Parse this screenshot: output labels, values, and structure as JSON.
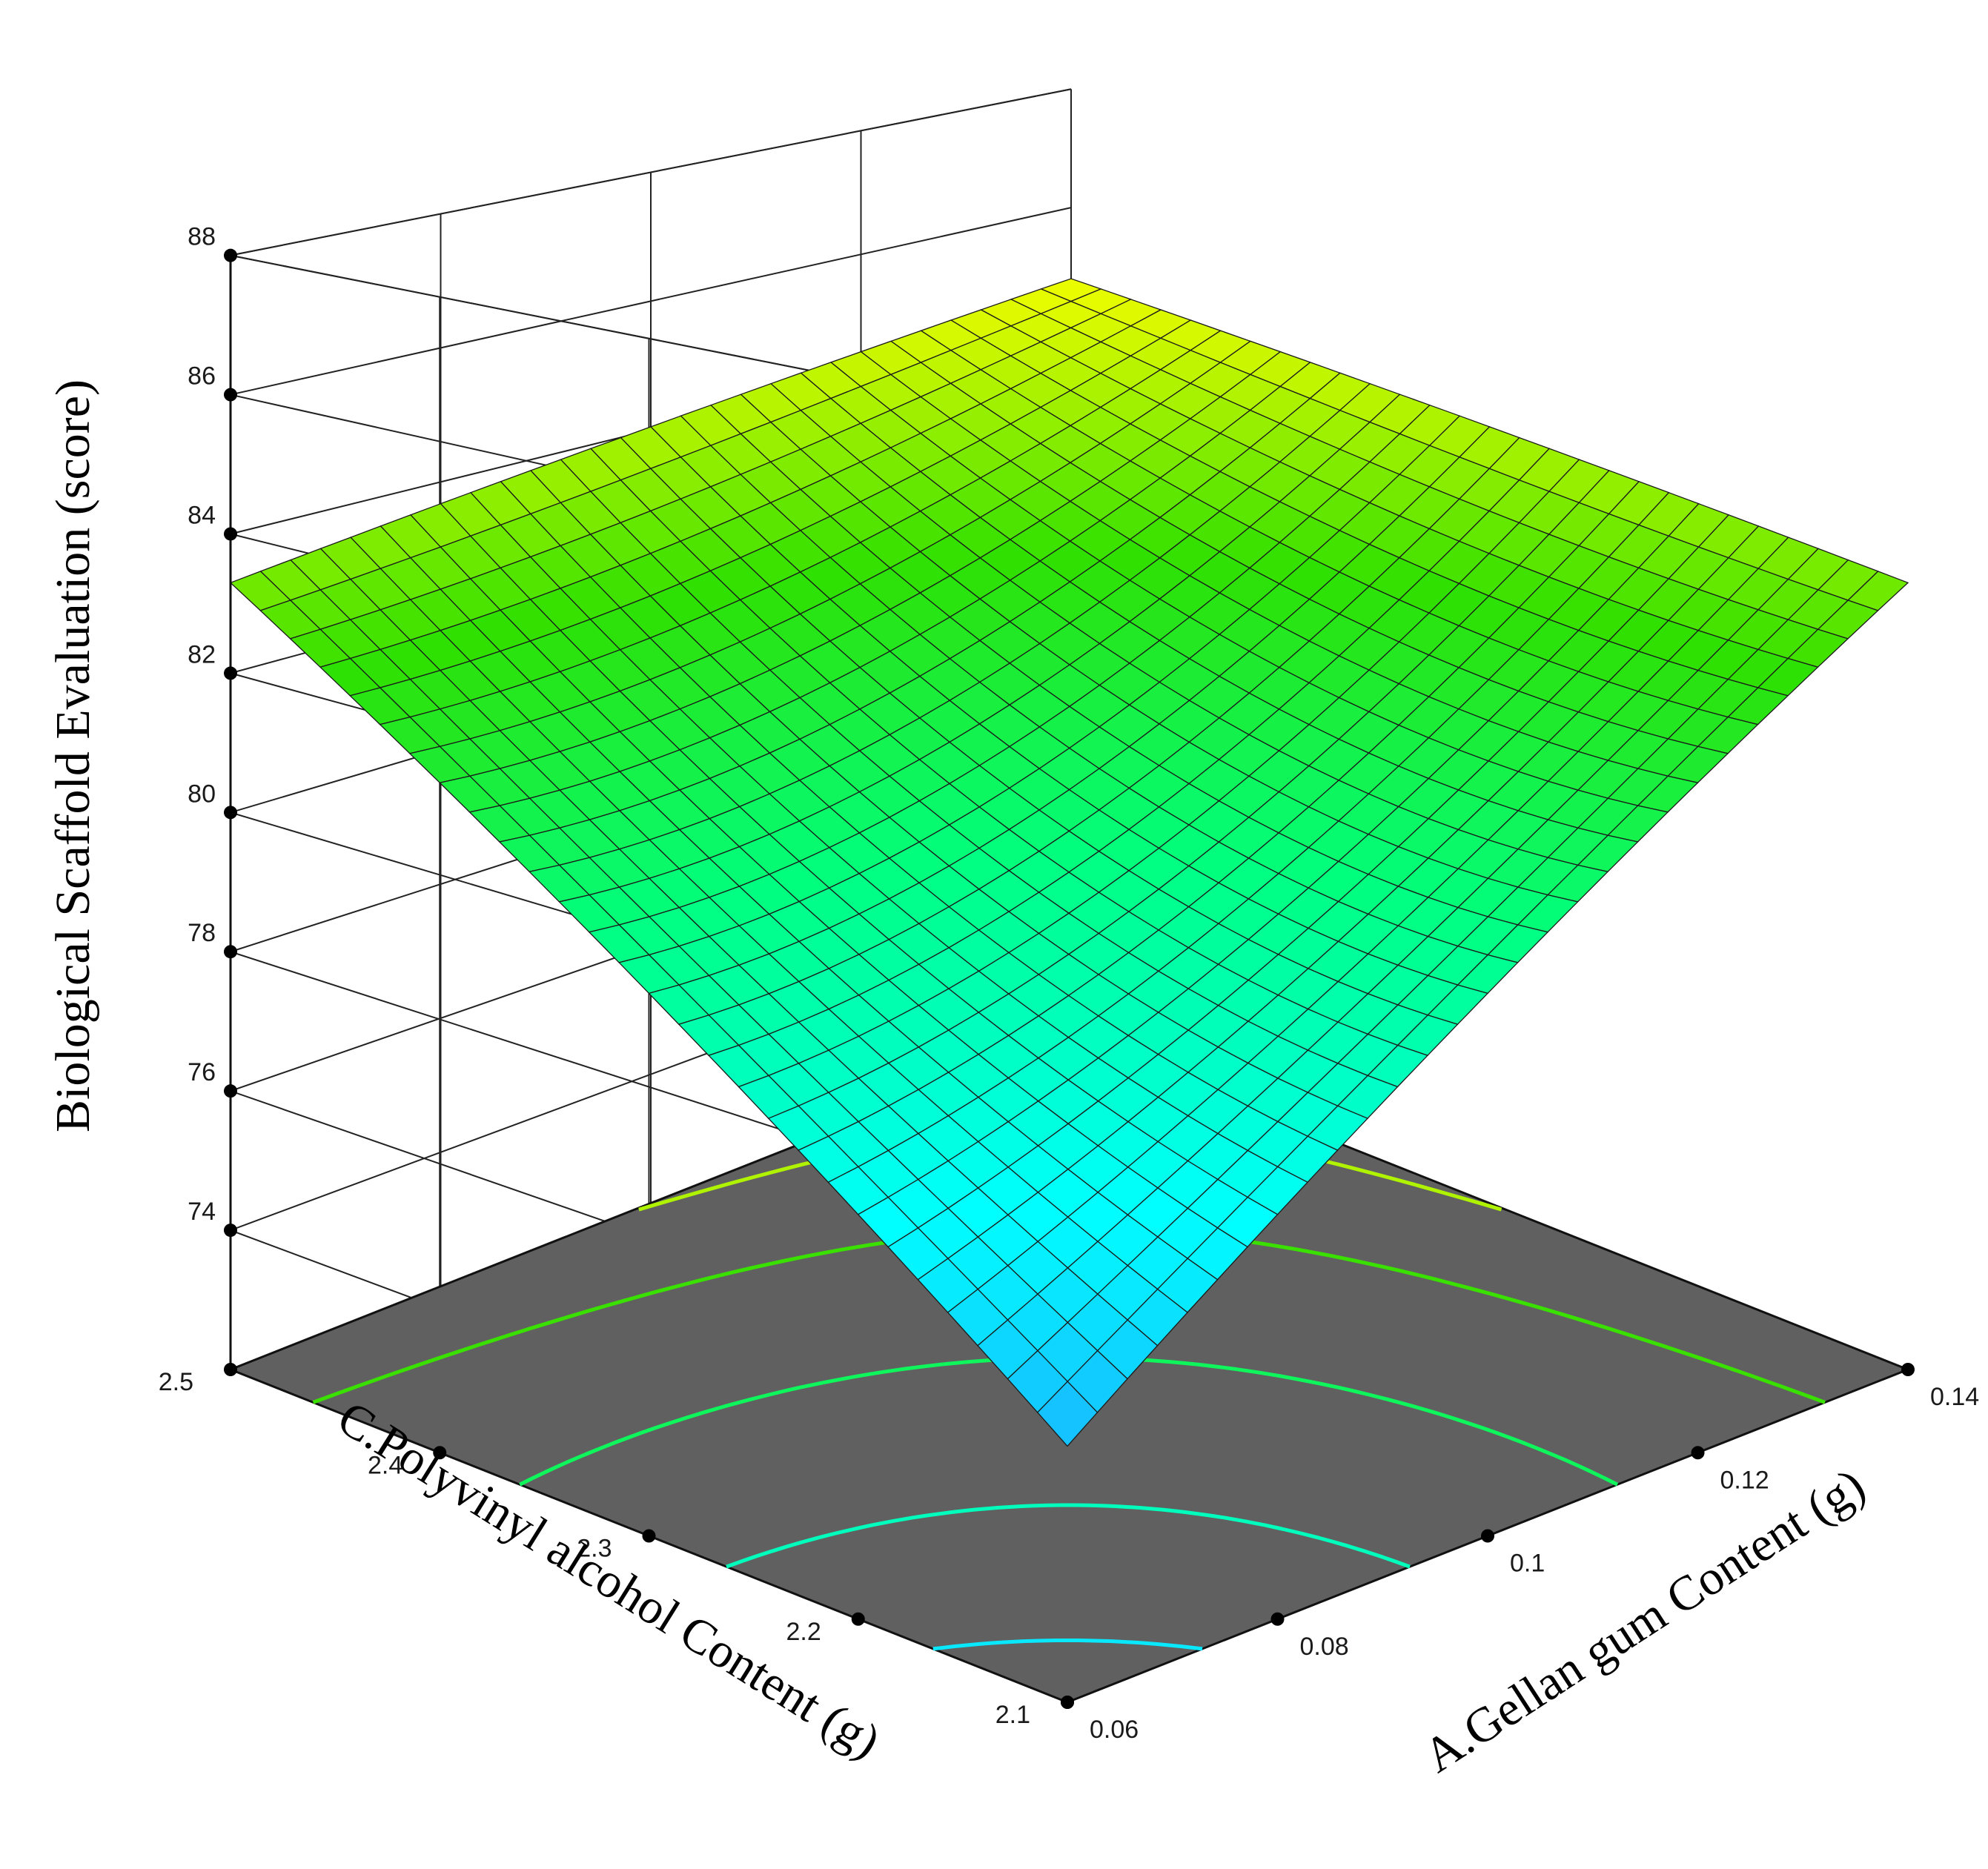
{
  "chart_data": {
    "type": "surface3d",
    "title": "",
    "zlabel": "Biological Scaffold Evaluation (score)",
    "xlabel": "A.Gellan gum Content (g)",
    "ylabel": "C.Polyvinyl alcohol Content (g)",
    "x_ticks": [
      "0.06",
      "0.08",
      "0.1",
      "0.12",
      "0.14"
    ],
    "y_ticks": [
      "2.1",
      "2.2",
      "2.3",
      "2.4",
      "2.5"
    ],
    "z_ticks": [
      "74",
      "76",
      "78",
      "80",
      "82",
      "84",
      "86",
      "88"
    ],
    "x_range": [
      0.06,
      0.14
    ],
    "y_range": [
      2.1,
      2.5
    ],
    "z_range": [
      72,
      88
    ],
    "surface_corners": [
      {
        "x": 0.06,
        "y": 2.1,
        "z": 75.2
      },
      {
        "x": 0.14,
        "y": 2.1,
        "z": 83.3
      },
      {
        "x": 0.06,
        "y": 2.5,
        "z": 83.3
      },
      {
        "x": 0.14,
        "y": 2.5,
        "z": 84.8
      }
    ],
    "surface_center": {
      "x": 0.1,
      "y": 2.3,
      "z": 79.9
    },
    "contour_plot": "floor",
    "colormap": [
      "#20a0ff",
      "#00ffff",
      "#00ff80",
      "#30e000",
      "#ffff00"
    ],
    "grid": true,
    "floor_color": "#606060"
  }
}
